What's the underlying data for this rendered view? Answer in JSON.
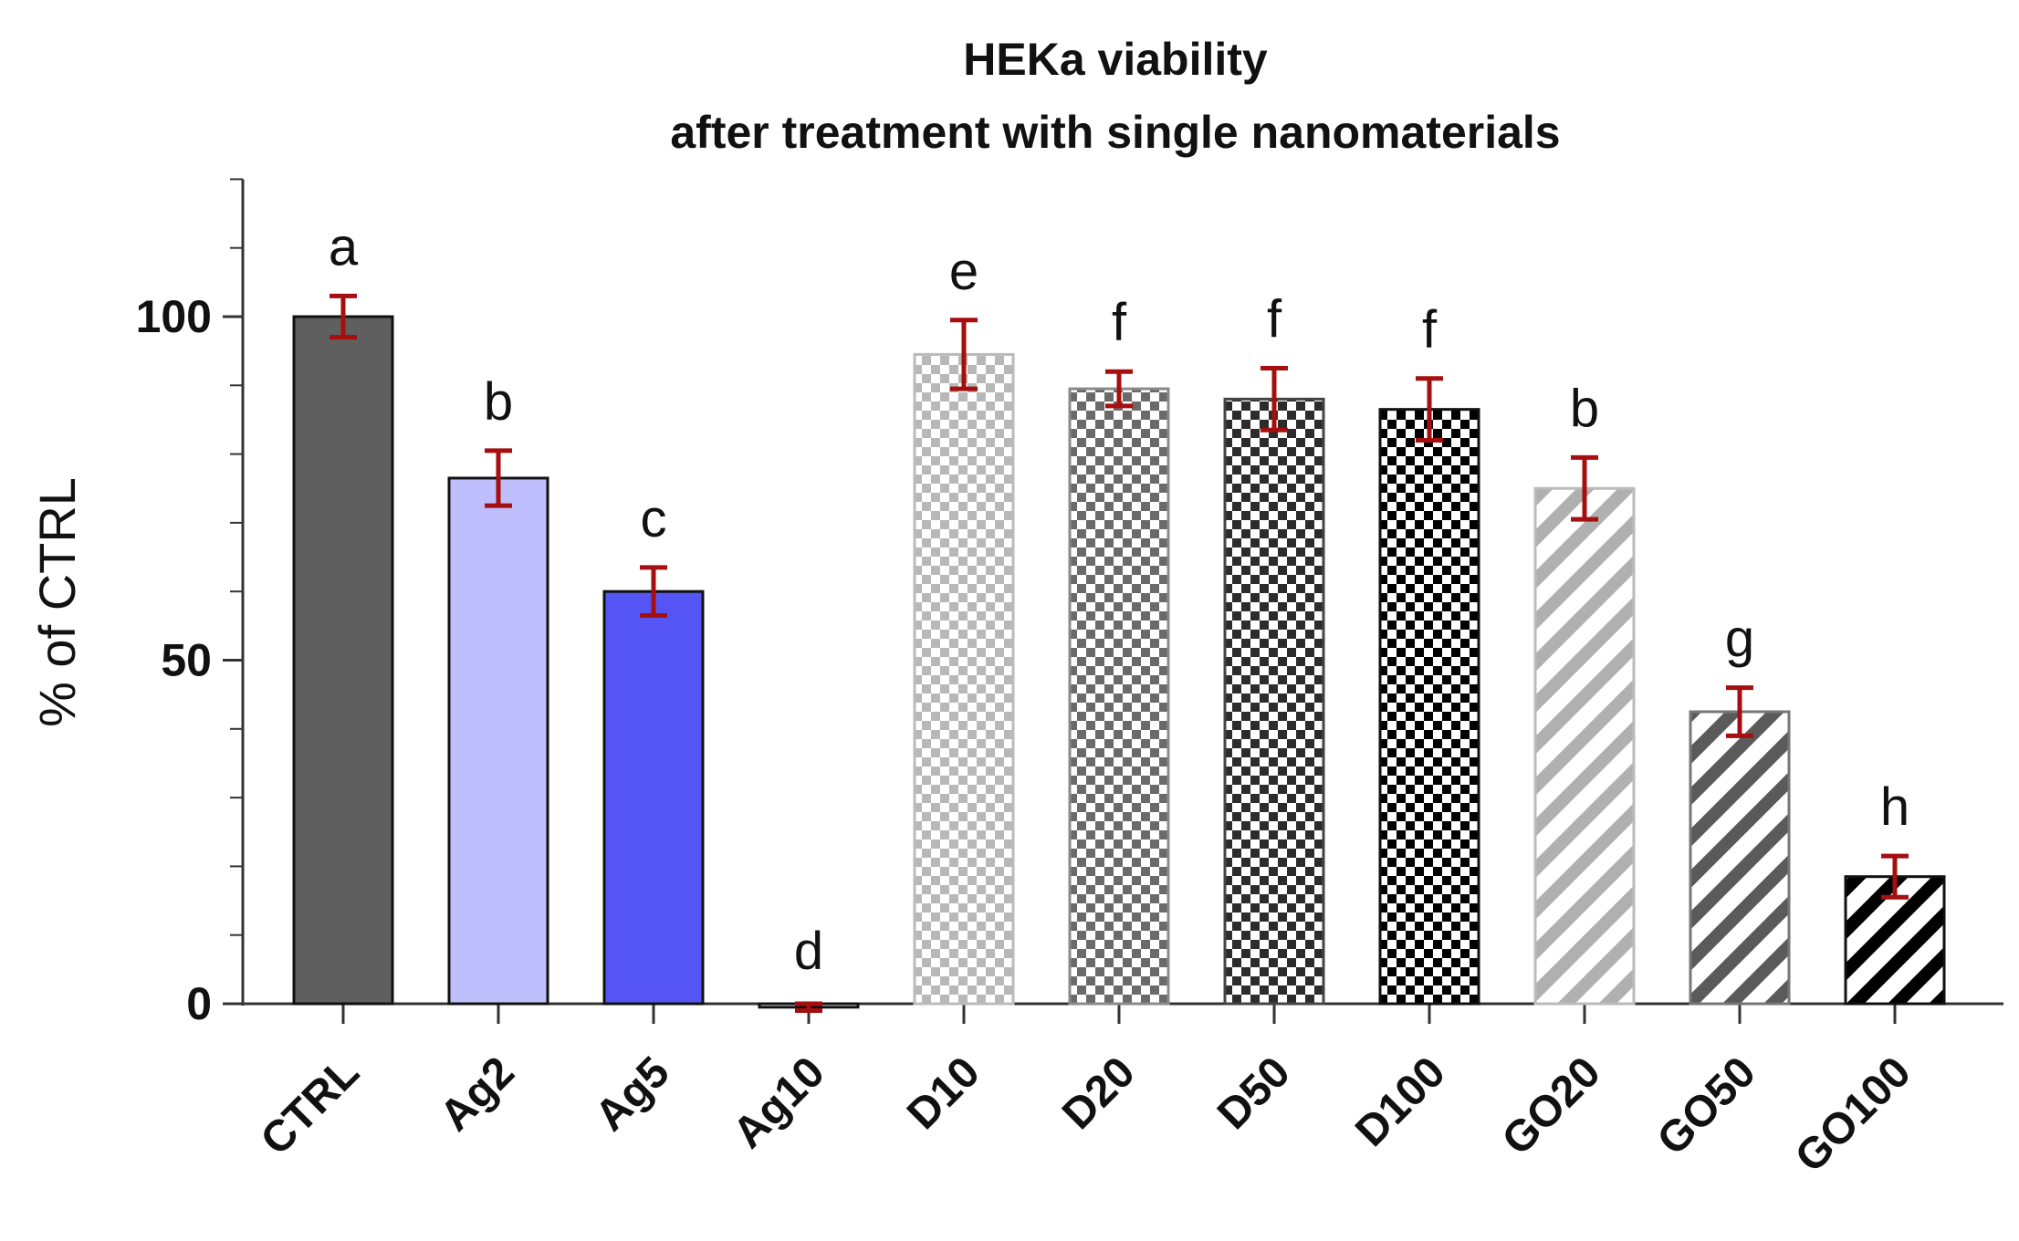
{
  "chart_data": {
    "type": "bar",
    "title": [
      "HEKa viability",
      "after treatment with single nanomaterials"
    ],
    "xlabel": "",
    "ylabel": "% of CTRL",
    "ylim": [
      0,
      120
    ],
    "yticks": [
      0,
      50,
      100
    ],
    "yminor_step": 10,
    "categories": [
      "CTRL",
      "Ag2",
      "Ag5",
      "Ag10",
      "D10",
      "D20",
      "D50",
      "D100",
      "GO20",
      "GO50",
      "GO100"
    ],
    "values": [
      100,
      76.5,
      60,
      -0.5,
      94.5,
      89.5,
      88,
      86.5,
      75,
      42.5,
      18.5
    ],
    "errors": [
      3,
      4,
      3.5,
      0.5,
      5,
      2.5,
      4.5,
      4.5,
      4.5,
      3.5,
      3
    ],
    "significance": [
      "a",
      "b",
      "c",
      "d",
      "e",
      "f",
      "f",
      "f",
      "b",
      "g",
      "h"
    ],
    "styles": [
      {
        "fill": "solid",
        "color": "#5f5f5f",
        "edge": "#111111"
      },
      {
        "fill": "solid",
        "color": "#bfbffd",
        "edge": "#111111"
      },
      {
        "fill": "solid",
        "color": "#5555f5",
        "edge": "#111111"
      },
      {
        "fill": "solid",
        "color": "#ffffff",
        "edge": "#111111"
      },
      {
        "fill": "checker",
        "color": "#b8b8b8",
        "edge": "#bbbbbb"
      },
      {
        "fill": "checker",
        "color": "#6a6a6a",
        "edge": "#8a8a8a"
      },
      {
        "fill": "checker",
        "color": "#2c2c2c",
        "edge": "#444444"
      },
      {
        "fill": "checker",
        "color": "#000000",
        "edge": "#111111"
      },
      {
        "fill": "diagonal",
        "color": "#b0b0b0",
        "edge": "#bbbbbb"
      },
      {
        "fill": "diagonal",
        "color": "#5a5a5a",
        "edge": "#777777"
      },
      {
        "fill": "diagonal",
        "color": "#000000",
        "edge": "#111111"
      }
    ],
    "error_color": "#a50f0f",
    "grid": false,
    "legend": "none"
  }
}
